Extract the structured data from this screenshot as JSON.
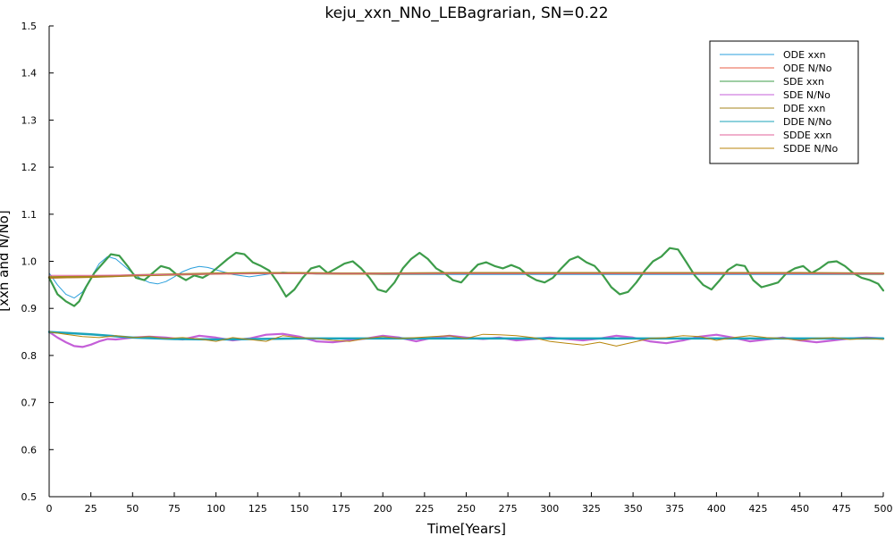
{
  "chart_data": {
    "type": "line",
    "title": "keju_xxn_NNo_LEBagrarian, SN=0.22",
    "xlabel": "Time[Years]",
    "ylabel": "[xxn and N/No]",
    "xlim": [
      0,
      500
    ],
    "ylim": [
      0.5,
      1.5
    ],
    "xticks": [
      0,
      25,
      50,
      75,
      100,
      125,
      150,
      175,
      200,
      225,
      250,
      275,
      300,
      325,
      350,
      375,
      400,
      425,
      450,
      475,
      500
    ],
    "yticks": [
      0.5,
      0.6,
      0.7,
      0.8,
      0.9,
      1.0,
      1.1,
      1.2,
      1.3,
      1.4,
      1.5
    ],
    "grid": false,
    "legend_position": "top-right",
    "series": [
      {
        "name": "ODE xxn",
        "color": "#2a9fdc",
        "width": 1,
        "x": [
          0,
          5,
          10,
          15,
          20,
          25,
          30,
          35,
          40,
          45,
          50,
          55,
          60,
          65,
          70,
          75,
          80,
          85,
          90,
          95,
          100,
          110,
          120,
          130,
          140,
          150,
          160,
          180,
          200,
          250,
          300,
          350,
          400,
          450,
          500
        ],
        "y": [
          0.975,
          0.95,
          0.93,
          0.922,
          0.935,
          0.965,
          0.995,
          1.01,
          1.005,
          0.99,
          0.975,
          0.963,
          0.955,
          0.952,
          0.957,
          0.967,
          0.978,
          0.985,
          0.989,
          0.987,
          0.982,
          0.972,
          0.967,
          0.972,
          0.977,
          0.975,
          0.973,
          0.973,
          0.972,
          0.972,
          0.972,
          0.972,
          0.972,
          0.972,
          0.972
        ]
      },
      {
        "name": "ODE N/No",
        "color": "#e85d45",
        "width": 1,
        "x": [
          0,
          25,
          50,
          75,
          100,
          125,
          150,
          200,
          250,
          300,
          350,
          400,
          450,
          500
        ],
        "y": [
          0.964,
          0.966,
          0.969,
          0.971,
          0.973,
          0.974,
          0.974,
          0.974,
          0.974,
          0.974,
          0.974,
          0.974,
          0.974,
          0.974
        ]
      },
      {
        "name": "SDE xxn",
        "color": "#3d9c4a",
        "width": 2.2,
        "x": [
          0,
          5,
          10,
          15,
          18,
          22,
          27,
          32,
          37,
          42,
          47,
          52,
          57,
          62,
          67,
          72,
          77,
          82,
          87,
          92,
          97,
          102,
          107,
          112,
          117,
          122,
          127,
          132,
          137,
          142,
          147,
          152,
          157,
          162,
          167,
          172,
          177,
          182,
          187,
          192,
          197,
          202,
          207,
          212,
          217,
          222,
          227,
          232,
          237,
          242,
          247,
          252,
          257,
          262,
          267,
          272,
          277,
          282,
          287,
          292,
          297,
          302,
          307,
          312,
          317,
          322,
          327,
          332,
          337,
          342,
          347,
          352,
          357,
          362,
          367,
          372,
          377,
          382,
          387,
          392,
          397,
          402,
          407,
          412,
          417,
          422,
          427,
          432,
          437,
          442,
          447,
          452,
          457,
          462,
          467,
          472,
          477,
          482,
          487,
          492,
          497,
          500
        ],
        "y": [
          0.965,
          0.93,
          0.915,
          0.905,
          0.915,
          0.945,
          0.975,
          0.995,
          1.015,
          1.012,
          0.99,
          0.965,
          0.96,
          0.975,
          0.99,
          0.985,
          0.97,
          0.96,
          0.97,
          0.965,
          0.975,
          0.99,
          1.005,
          1.018,
          1.015,
          0.998,
          0.99,
          0.98,
          0.955,
          0.925,
          0.94,
          0.965,
          0.985,
          0.99,
          0.975,
          0.985,
          0.995,
          1.0,
          0.985,
          0.965,
          0.94,
          0.935,
          0.955,
          0.985,
          1.005,
          1.018,
          1.005,
          0.985,
          0.975,
          0.96,
          0.955,
          0.975,
          0.993,
          0.998,
          0.99,
          0.985,
          0.992,
          0.985,
          0.97,
          0.96,
          0.955,
          0.965,
          0.985,
          1.003,
          1.01,
          0.998,
          0.99,
          0.97,
          0.945,
          0.93,
          0.935,
          0.955,
          0.98,
          1.0,
          1.01,
          1.028,
          1.025,
          0.998,
          0.97,
          0.95,
          0.94,
          0.96,
          0.982,
          0.993,
          0.99,
          0.96,
          0.945,
          0.95,
          0.955,
          0.975,
          0.985,
          0.99,
          0.975,
          0.985,
          0.998,
          1.0,
          0.99,
          0.975,
          0.965,
          0.96,
          0.952,
          0.938
        ]
      },
      {
        "name": "SDE N/No",
        "color": "#c45fd8",
        "width": 2.2,
        "x": [
          0,
          5,
          10,
          15,
          20,
          25,
          30,
          35,
          40,
          50,
          60,
          70,
          80,
          90,
          100,
          110,
          120,
          130,
          140,
          150,
          160,
          170,
          180,
          190,
          200,
          210,
          220,
          230,
          240,
          250,
          260,
          270,
          280,
          290,
          300,
          310,
          320,
          330,
          340,
          350,
          360,
          370,
          380,
          390,
          400,
          410,
          420,
          430,
          440,
          450,
          460,
          470,
          480,
          490,
          500
        ],
        "y": [
          0.85,
          0.838,
          0.828,
          0.82,
          0.818,
          0.823,
          0.83,
          0.835,
          0.834,
          0.838,
          0.84,
          0.838,
          0.834,
          0.842,
          0.838,
          0.832,
          0.836,
          0.844,
          0.846,
          0.84,
          0.83,
          0.828,
          0.832,
          0.836,
          0.842,
          0.838,
          0.83,
          0.838,
          0.842,
          0.838,
          0.835,
          0.838,
          0.832,
          0.835,
          0.838,
          0.835,
          0.832,
          0.836,
          0.842,
          0.838,
          0.83,
          0.826,
          0.832,
          0.84,
          0.844,
          0.838,
          0.83,
          0.834,
          0.838,
          0.832,
          0.828,
          0.832,
          0.836,
          0.838,
          0.836
        ]
      },
      {
        "name": "DDE xxn",
        "color": "#a6851b",
        "width": 2.5,
        "x": [
          0,
          25,
          50,
          75,
          100,
          125,
          150,
          175,
          200,
          250,
          300,
          350,
          400,
          450,
          500
        ],
        "y": [
          0.966,
          0.967,
          0.97,
          0.972,
          0.974,
          0.975,
          0.975,
          0.974,
          0.974,
          0.975,
          0.975,
          0.975,
          0.975,
          0.975,
          0.974
        ]
      },
      {
        "name": "DDE N/No",
        "color": "#1aa3ba",
        "width": 2.5,
        "x": [
          0,
          25,
          50,
          75,
          100,
          125,
          150,
          200,
          250,
          300,
          350,
          400,
          450,
          500
        ],
        "y": [
          0.85,
          0.845,
          0.838,
          0.835,
          0.834,
          0.835,
          0.836,
          0.836,
          0.836,
          0.836,
          0.836,
          0.836,
          0.836,
          0.836
        ]
      },
      {
        "name": "SDDE xxn",
        "color": "#e0609a",
        "width": 1,
        "x": [
          0,
          25,
          50,
          75,
          100,
          125,
          150,
          175,
          200,
          225,
          250,
          275,
          300,
          325,
          350,
          375,
          400,
          425,
          450,
          475,
          500
        ],
        "y": [
          0.97,
          0.97,
          0.971,
          0.972,
          0.973,
          0.974,
          0.974,
          0.974,
          0.974,
          0.974,
          0.974,
          0.974,
          0.974,
          0.974,
          0.974,
          0.974,
          0.974,
          0.974,
          0.974,
          0.974,
          0.974
        ]
      },
      {
        "name": "SDDE N/No",
        "color": "#b8860b",
        "width": 1,
        "x": [
          0,
          10,
          20,
          30,
          40,
          50,
          60,
          70,
          80,
          90,
          100,
          110,
          120,
          130,
          140,
          150,
          160,
          170,
          180,
          190,
          200,
          210,
          220,
          230,
          240,
          250,
          260,
          270,
          280,
          290,
          300,
          310,
          320,
          330,
          340,
          350,
          360,
          370,
          380,
          390,
          400,
          410,
          420,
          430,
          440,
          450,
          460,
          470,
          480,
          490,
          500
        ],
        "y": [
          0.85,
          0.845,
          0.84,
          0.838,
          0.842,
          0.838,
          0.84,
          0.836,
          0.838,
          0.835,
          0.83,
          0.838,
          0.834,
          0.83,
          0.842,
          0.838,
          0.836,
          0.832,
          0.83,
          0.836,
          0.84,
          0.836,
          0.838,
          0.84,
          0.842,
          0.836,
          0.845,
          0.844,
          0.842,
          0.838,
          0.83,
          0.826,
          0.822,
          0.828,
          0.82,
          0.828,
          0.836,
          0.838,
          0.842,
          0.84,
          0.832,
          0.838,
          0.842,
          0.838,
          0.836,
          0.832,
          0.836,
          0.838,
          0.834,
          0.836,
          0.834
        ]
      }
    ]
  }
}
